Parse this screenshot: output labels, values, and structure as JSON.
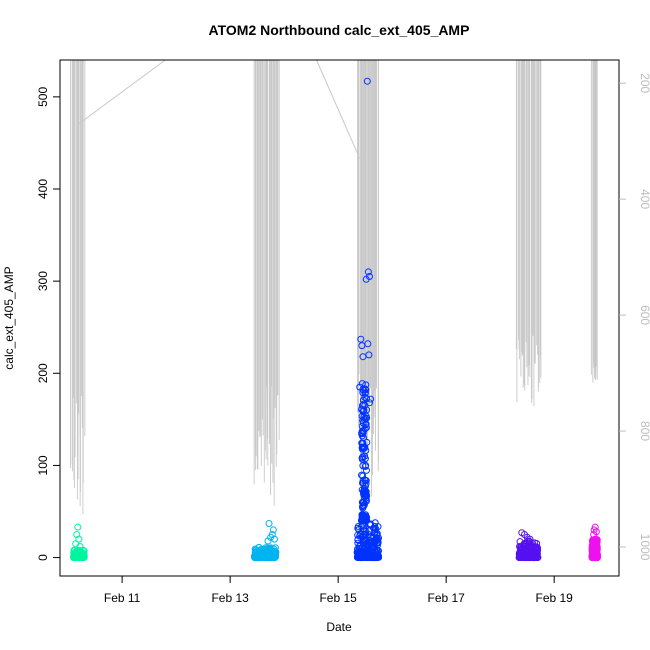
{
  "chart_data": {
    "type": "scatter",
    "title": "ATOM2 Northbound calc_ext_405_AMP",
    "xlabel": "Date",
    "ylabel": "calc_ext_405_AMP",
    "x_ticks": [
      "Feb 11",
      "Feb 13",
      "Feb 15",
      "Feb 17",
      "Feb 19"
    ],
    "x_tick_days": [
      11,
      13,
      15,
      17,
      19
    ],
    "xlim_days": [
      9.85,
      20.2
    ],
    "ylim": [
      -20,
      540
    ],
    "y_ticks": [
      0,
      100,
      200,
      300,
      400,
      500
    ],
    "y2_ticks": [
      200,
      400,
      600,
      800,
      1000
    ],
    "y2lim_reversed": [
      1050,
      160
    ],
    "series": [
      {
        "color": "#00f5a0",
        "x_range_days": [
          10.1,
          10.3
        ],
        "typical_range": [
          0,
          8
        ],
        "outliers": [
          [
            10.18,
            33
          ],
          [
            10.16,
            25
          ],
          [
            10.2,
            20
          ],
          [
            10.14,
            15
          ],
          [
            10.22,
            12
          ]
        ]
      },
      {
        "color": "#00b4f0",
        "x_range_days": [
          13.45,
          13.85
        ],
        "typical_range": [
          0,
          12
        ],
        "outliers": [
          [
            13.72,
            37
          ],
          [
            13.8,
            30
          ],
          [
            13.78,
            25
          ],
          [
            13.75,
            22
          ],
          [
            13.82,
            20
          ],
          [
            13.7,
            18
          ]
        ]
      },
      {
        "color": "#0033ff",
        "x_range_days": [
          15.35,
          15.75
        ],
        "typical_range": [
          0,
          40
        ],
        "outliers": [
          [
            15.54,
            517
          ],
          [
            15.56,
            310
          ],
          [
            15.58,
            305
          ],
          [
            15.52,
            302
          ],
          [
            15.42,
            237
          ],
          [
            15.44,
            230
          ],
          [
            15.55,
            232
          ],
          [
            15.57,
            220
          ],
          [
            15.46,
            218
          ],
          [
            15.4,
            185
          ],
          [
            15.5,
            183
          ],
          [
            15.6,
            172
          ],
          [
            15.58,
            168
          ],
          [
            15.45,
            165
          ],
          [
            15.48,
            150
          ],
          [
            15.52,
            145
          ],
          [
            15.5,
            140
          ],
          [
            15.47,
            130
          ],
          [
            15.53,
            125
          ],
          [
            15.45,
            120
          ],
          [
            15.49,
            110
          ],
          [
            15.51,
            100
          ]
        ]
      },
      {
        "color": "#5511f0",
        "x_range_days": [
          18.35,
          18.7
        ],
        "typical_range": [
          0,
          18
        ],
        "outliers": [
          [
            18.4,
            27
          ],
          [
            18.45,
            25
          ],
          [
            18.5,
            22
          ],
          [
            18.55,
            20
          ]
        ]
      },
      {
        "color": "#ee11ee",
        "x_range_days": [
          19.7,
          19.8
        ],
        "typical_range": [
          0,
          20
        ],
        "outliers": [
          [
            19.76,
            33
          ],
          [
            19.74,
            30
          ],
          [
            19.78,
            28
          ],
          [
            19.73,
            25
          ]
        ]
      }
    ],
    "depth_line": {
      "color": "#c8c8c8",
      "clusters": [
        {
          "x_range_days": [
            10.05,
            10.3
          ],
          "bottom_right_units": [
            700,
            950
          ]
        },
        {
          "x_range_days": [
            13.45,
            13.9
          ],
          "bottom_right_units": [
            720,
            930
          ]
        },
        {
          "x_range_days": [
            15.35,
            15.75
          ],
          "bottom_right_units": [
            700,
            920
          ]
        },
        {
          "x_range_days": [
            18.3,
            18.75
          ],
          "bottom_right_units": [
            630,
            760
          ]
        },
        {
          "x_range_days": [
            19.7,
            19.8
          ],
          "bottom_right_units": [
            680,
            720
          ]
        }
      ],
      "connectors": [
        [
          10.2,
          270,
          11.8,
          160
        ],
        [
          14.6,
          160,
          15.4,
          330
        ]
      ]
    },
    "grid": false,
    "legend": "none"
  }
}
